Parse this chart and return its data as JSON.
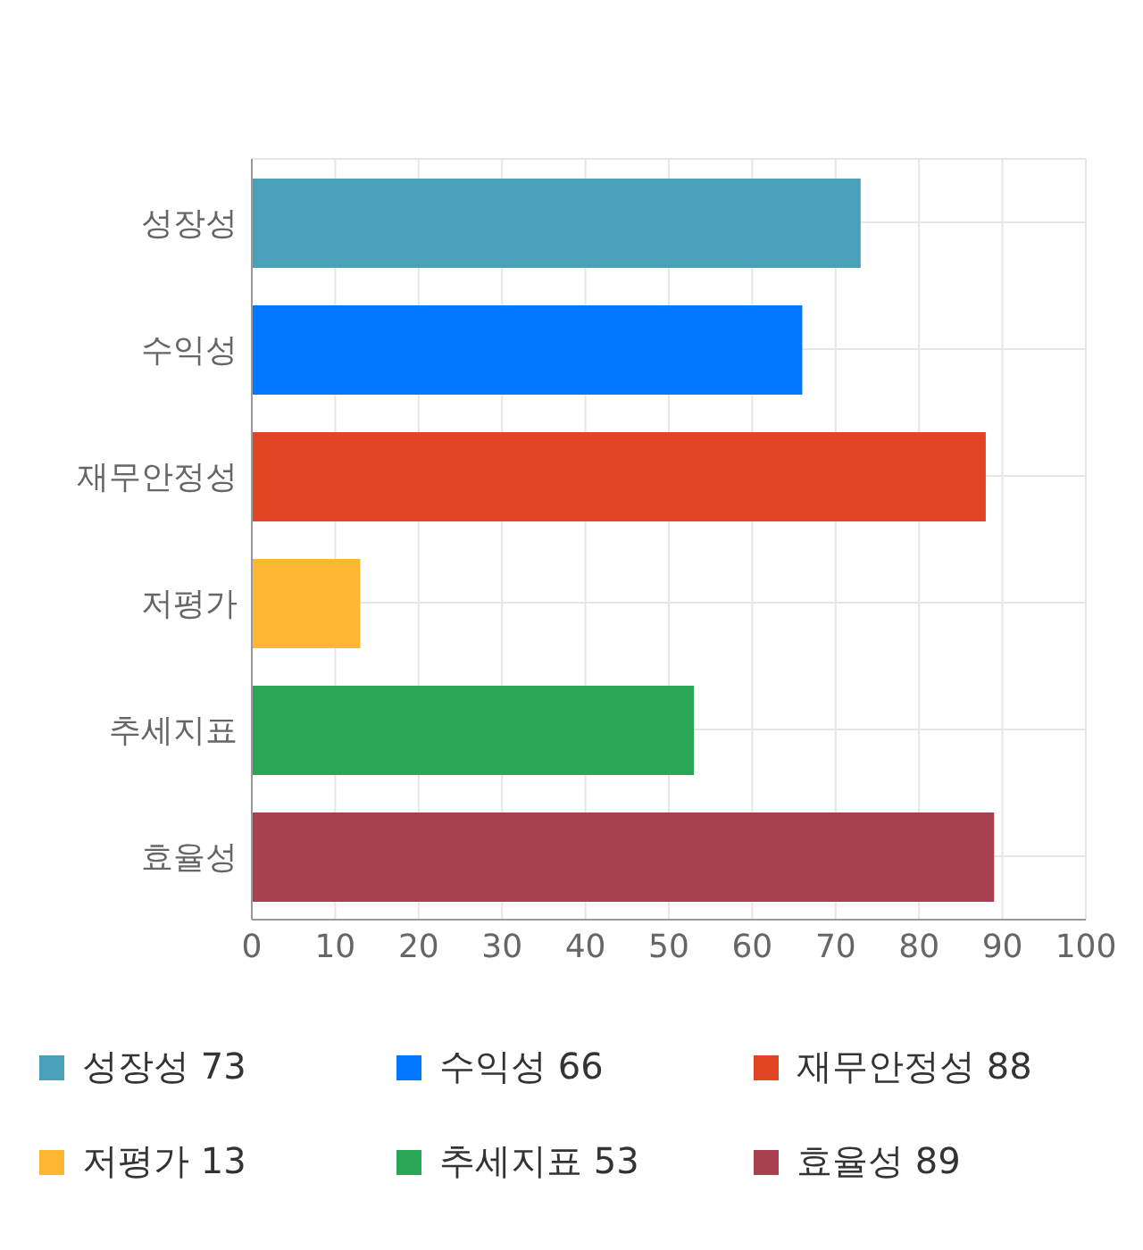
{
  "chart_data": {
    "type": "bar",
    "orientation": "horizontal",
    "stacked": true,
    "categories": [
      "성장성",
      "수익성",
      "재무안정성",
      "저평가",
      "추세지표",
      "효율성"
    ],
    "series": [
      {
        "name": "성장성 73",
        "color": "#4aa0b8",
        "values": [
          73,
          null,
          null,
          null,
          null,
          null
        ]
      },
      {
        "name": "수익성 66",
        "color": "#0077ff",
        "values": [
          null,
          66,
          null,
          null,
          null,
          null
        ]
      },
      {
        "name": "재무안정성 88",
        "color": "#e24523",
        "values": [
          null,
          null,
          88,
          null,
          null,
          null
        ]
      },
      {
        "name": "저평가 13",
        "color": "#ffb733",
        "values": [
          null,
          null,
          null,
          13,
          null,
          null
        ]
      },
      {
        "name": "추세지표 53",
        "color": "#2aa756",
        "values": [
          null,
          null,
          null,
          null,
          53,
          null
        ]
      },
      {
        "name": "효율성 89",
        "color": "#a8404f",
        "values": [
          null,
          null,
          null,
          null,
          null,
          89
        ]
      }
    ],
    "xlim": [
      0,
      100
    ],
    "xticks": [
      0,
      10,
      20,
      30,
      40,
      50,
      60,
      70,
      80,
      90,
      100
    ],
    "grid": true,
    "legend": "bottom"
  }
}
